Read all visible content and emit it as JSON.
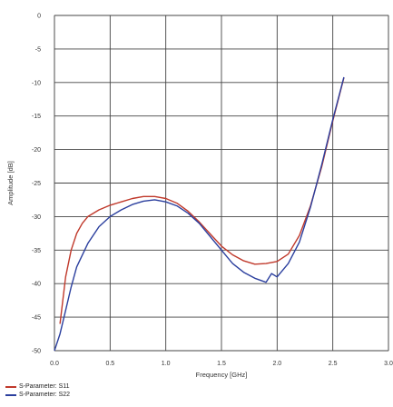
{
  "chart_data": {
    "type": "line",
    "xlabel": "Frequency [GHz]",
    "ylabel": "Amplitude [dB]",
    "xlim": [
      0,
      3.0
    ],
    "ylim": [
      -50,
      0
    ],
    "xticks": [
      "0.0",
      "0.5",
      "1.0",
      "1.5",
      "2.0",
      "2.5",
      "3.0"
    ],
    "yticks": [
      "0",
      "-5",
      "-10",
      "-15",
      "-20",
      "-25",
      "-30",
      "-35",
      "-40",
      "-45",
      "-50"
    ],
    "grid": true,
    "legend_position": "bottom-left",
    "series": [
      {
        "name": "S-Parameter: S11",
        "color": "#c0392b",
        "x": [
          0.05,
          0.1,
          0.15,
          0.2,
          0.25,
          0.3,
          0.4,
          0.5,
          0.6,
          0.7,
          0.8,
          0.9,
          1.0,
          1.1,
          1.2,
          1.3,
          1.4,
          1.5,
          1.6,
          1.7,
          1.8,
          1.9,
          2.0,
          2.1,
          2.2,
          2.3,
          2.4,
          2.5,
          2.6
        ],
        "values": [
          -46.0,
          -39.0,
          -35.0,
          -32.5,
          -31.0,
          -30.0,
          -29.0,
          -28.3,
          -27.8,
          -27.3,
          -27.0,
          -27.0,
          -27.3,
          -28.0,
          -29.2,
          -30.8,
          -32.6,
          -34.4,
          -35.7,
          -36.6,
          -37.1,
          -37.0,
          -36.7,
          -35.6,
          -32.8,
          -28.4,
          -22.6,
          -15.7,
          -9.3
        ]
      },
      {
        "name": "S-Parameter: S22",
        "color": "#2b3f9e",
        "x": [
          0.0,
          0.05,
          0.1,
          0.15,
          0.2,
          0.3,
          0.4,
          0.5,
          0.6,
          0.7,
          0.8,
          0.9,
          1.0,
          1.1,
          1.2,
          1.3,
          1.4,
          1.5,
          1.6,
          1.7,
          1.8,
          1.9,
          1.95,
          2.0,
          2.1,
          2.2,
          2.3,
          2.4,
          2.5,
          2.6
        ],
        "values": [
          -50.0,
          -47.5,
          -44.0,
          -40.5,
          -37.5,
          -34.0,
          -31.5,
          -30.0,
          -29.0,
          -28.2,
          -27.7,
          -27.5,
          -27.8,
          -28.4,
          -29.5,
          -31.0,
          -33.0,
          -35.0,
          -37.0,
          -38.3,
          -39.2,
          -39.8,
          -38.5,
          -39.0,
          -37.0,
          -33.8,
          -28.6,
          -22.3,
          -15.5,
          -9.2
        ]
      }
    ]
  }
}
